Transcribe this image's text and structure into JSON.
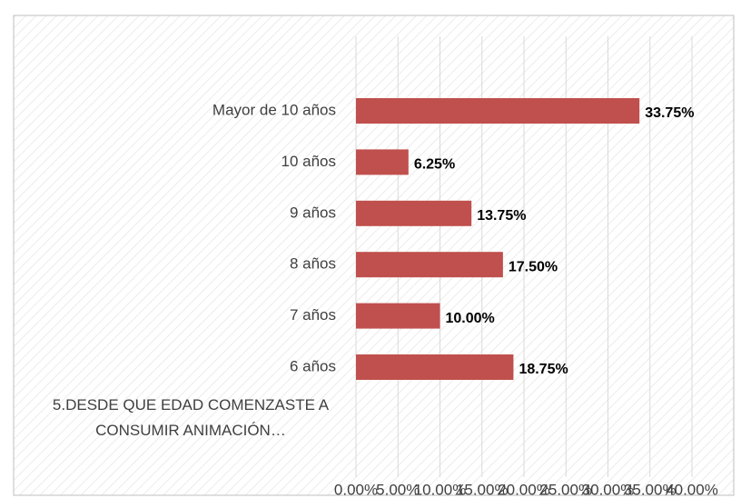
{
  "chart_data": {
    "type": "barh",
    "categories": [
      "Mayor de 10 años",
      "10 años",
      "9 años",
      "8 años",
      "7 años",
      "6 años",
      "5.DESDE QUE EDAD COMENZASTE A CONSUMIR ANIMACIÓN…"
    ],
    "values": [
      33.75,
      6.25,
      13.75,
      17.5,
      10,
      18.75,
      null
    ],
    "value_labels": [
      "33.75%",
      "6.25%",
      "13.75%",
      "17.50%",
      "10.00%",
      "18.75%",
      null
    ],
    "color": "#c0504d",
    "xlim": [
      0,
      40
    ],
    "xticks": [
      {
        "value": 0,
        "label": "0.00%"
      },
      {
        "value": 5,
        "label": "5.00%"
      },
      {
        "value": 10,
        "label": "10.00%"
      },
      {
        "value": 15,
        "label": "15.00%"
      },
      {
        "value": 20,
        "label": "20.00%"
      },
      {
        "value": 25,
        "label": "25.00%"
      },
      {
        "value": 30,
        "label": "30.00%"
      },
      {
        "value": 35,
        "label": "35.00%"
      },
      {
        "value": 40,
        "label": "40.00%"
      }
    ],
    "grid": true
  }
}
